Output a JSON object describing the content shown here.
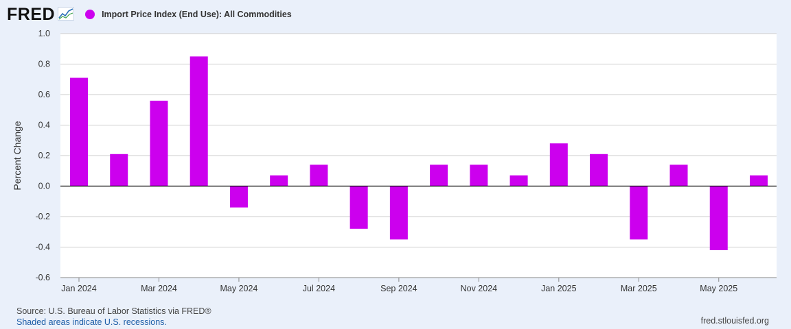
{
  "header": {
    "logo_text": "FRED",
    "logo_icon": "line-chart-icon",
    "legend_label": "Import Price Index (End Use): All Commodities"
  },
  "colors": {
    "bar": "#cc00ee",
    "grid": "#cccccc",
    "background": "#eaf0fa",
    "plot_bg": "#ffffff"
  },
  "chart_data": {
    "type": "bar",
    "title": "Import Price Index (End Use): All Commodities",
    "ylabel": "Percent Change",
    "xlabel": "",
    "ylim": [
      -0.6,
      1.0
    ],
    "y_ticks": [
      "1.0",
      "0.8",
      "0.6",
      "0.4",
      "0.2",
      "0.0",
      "-0.2",
      "-0.4",
      "-0.6"
    ],
    "y_tick_values": [
      1.0,
      0.8,
      0.6,
      0.4,
      0.2,
      0.0,
      -0.2,
      -0.4,
      -0.6
    ],
    "categories": [
      "Jan 2024",
      "Feb 2024",
      "Mar 2024",
      "Apr 2024",
      "May 2024",
      "Jun 2024",
      "Jul 2024",
      "Aug 2024",
      "Sep 2024",
      "Oct 2024",
      "Nov 2024",
      "Dec 2024",
      "Jan 2025",
      "Feb 2025",
      "Mar 2025",
      "Apr 2025",
      "May 2025",
      "Jun 2025"
    ],
    "x_tick_labels": [
      "Jan 2024",
      "Mar 2024",
      "May 2024",
      "Jul 2024",
      "Sep 2024",
      "Nov 2024",
      "Jan 2025",
      "Mar 2025",
      "May 2025"
    ],
    "values": [
      0.71,
      0.21,
      0.56,
      0.85,
      -0.14,
      0.07,
      0.14,
      -0.28,
      -0.35,
      0.14,
      0.14,
      0.07,
      0.28,
      0.21,
      -0.35,
      0.14,
      -0.42,
      0.07
    ]
  },
  "footer": {
    "source": "Source: U.S. Bureau of Labor Statistics via FRED®",
    "shaded": "Shaded areas indicate U.S. recessions.",
    "url": "fred.stlouisfed.org"
  }
}
